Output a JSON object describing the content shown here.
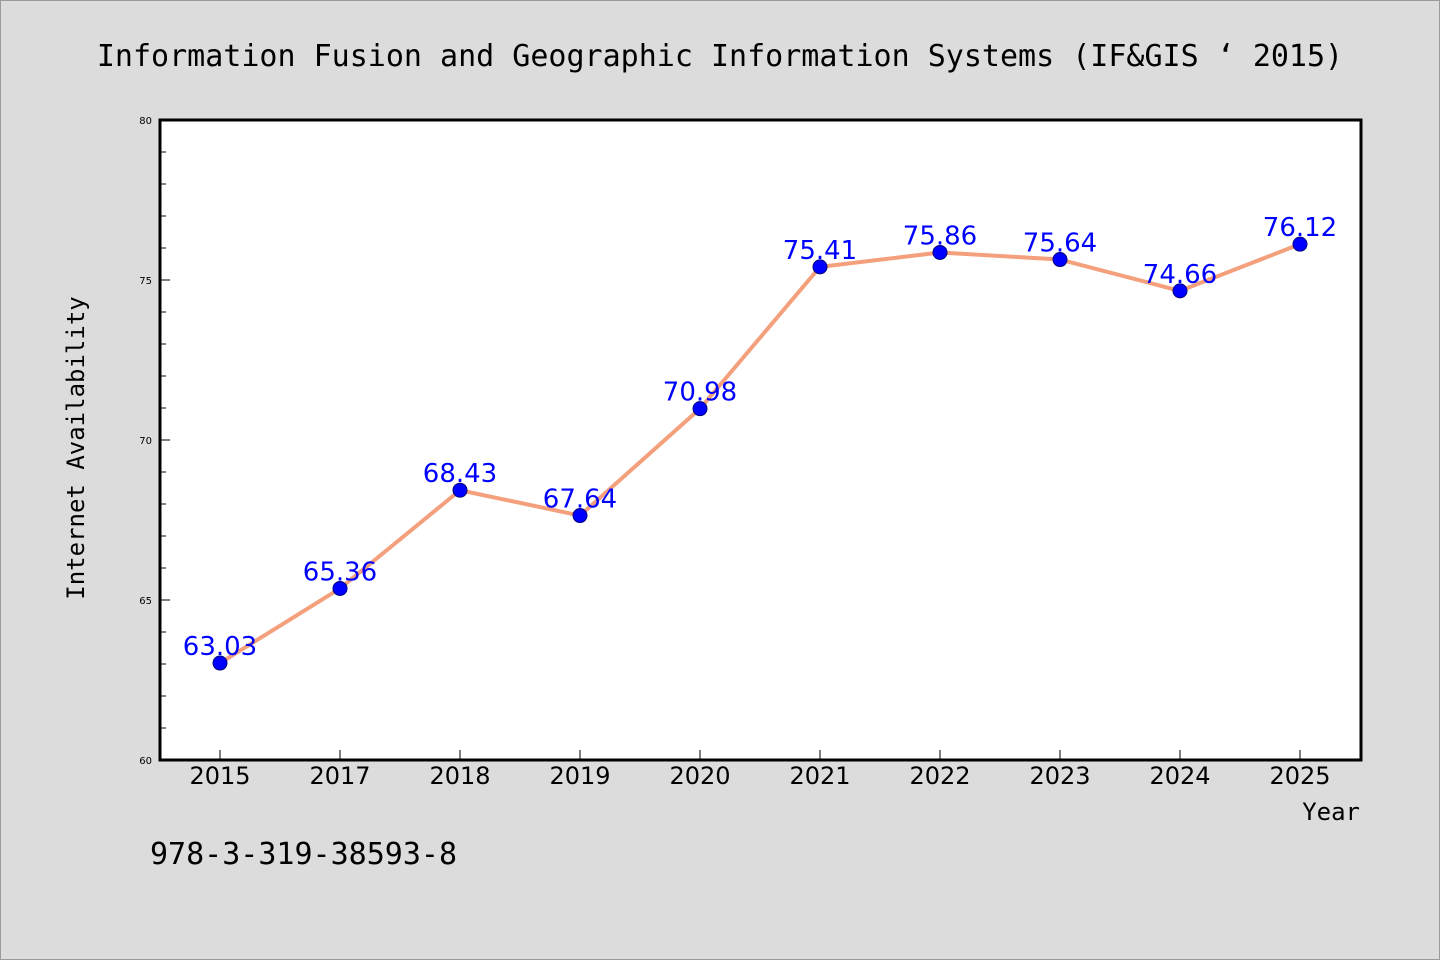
{
  "chart_data": {
    "type": "line",
    "title": "Information Fusion and Geographic Information Systems (IF&GIS ‘ 2015)",
    "xlabel": "Year",
    "ylabel": "Internet Availability",
    "categories": [
      "2015",
      "2017",
      "2018",
      "2019",
      "2020",
      "2021",
      "2022",
      "2023",
      "2024",
      "2025"
    ],
    "series": [
      {
        "values": [
          63.03,
          65.36,
          68.43,
          67.64,
          70.98,
          75.41,
          75.86,
          75.64,
          74.66,
          76.12
        ],
        "data_labels": [
          "63.03",
          "65.36",
          "68.43",
          "67.64",
          "70.98",
          "75.41",
          "75.86",
          "75.64",
          "74.66",
          "76.12"
        ]
      }
    ],
    "ylim": [
      60,
      80
    ],
    "yticks": [
      60,
      65,
      70,
      75,
      80
    ],
    "ytick_labels": [
      "60",
      "65",
      "70",
      "75",
      "80"
    ],
    "grid": false,
    "line_color": "#f4a07c",
    "marker_color": "#0000ff",
    "label_color": "#0000ff"
  },
  "footer": {
    "isbn": "978-3-319-38593-8"
  },
  "colors": {
    "background": "#dcdcdc",
    "plot_background": "#ffffff"
  }
}
